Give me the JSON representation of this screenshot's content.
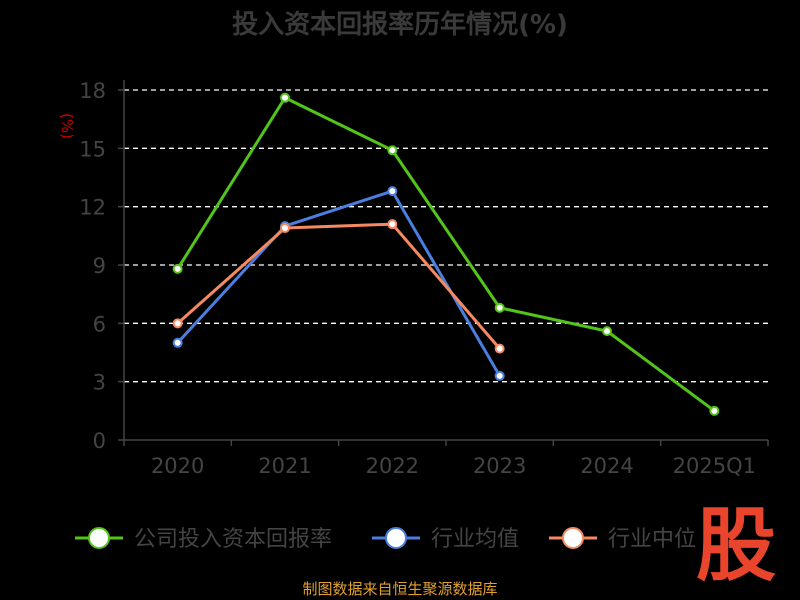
{
  "chart_data": {
    "type": "line",
    "title": "投入资本回报率历年情况(%)",
    "ylabel": "(%)",
    "categories": [
      "2020",
      "2021",
      "2022",
      "2023",
      "2024",
      "2025Q1"
    ],
    "yticks": [
      "0",
      "3",
      "6",
      "9",
      "12",
      "15",
      "18"
    ],
    "ylim": [
      0,
      18
    ],
    "grid": true,
    "legend_position": "bottom",
    "series": [
      {
        "name": "公司投入资本回报率",
        "color": "#52c41a",
        "values": [
          8.8,
          17.6,
          14.9,
          6.8,
          5.6,
          1.5
        ]
      },
      {
        "name": "行业均值",
        "color": "#4a7fe0",
        "values": [
          5.0,
          11.0,
          12.8,
          3.3,
          null,
          null
        ]
      },
      {
        "name": "行业中位",
        "color": "#f5895f",
        "values": [
          6.0,
          10.9,
          11.1,
          4.7,
          null,
          null
        ]
      }
    ]
  },
  "watermark": "股",
  "source": "制图数据来自恒生聚源数据库"
}
